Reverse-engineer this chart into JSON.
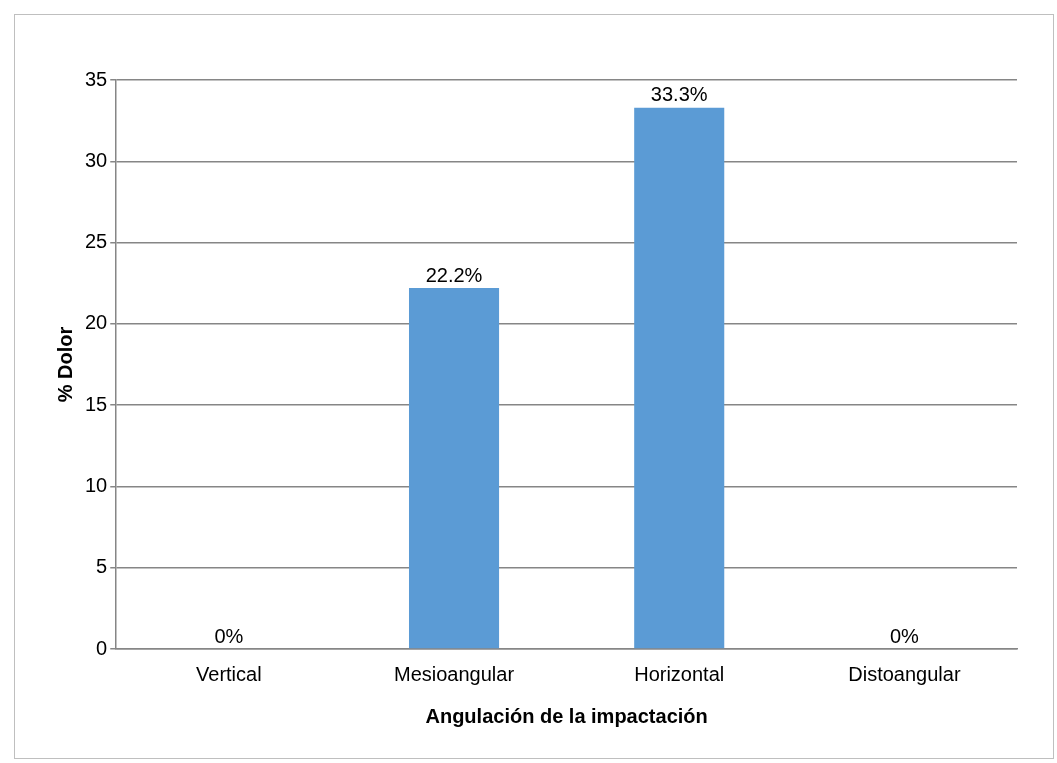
{
  "chart_data": {
    "type": "bar",
    "xlabel": "Angulación de la impactación",
    "ylabel": "% Dolor",
    "categories": [
      "Vertical",
      "Mesioangular",
      "Horizontal",
      "Distoangular"
    ],
    "values": [
      0,
      22.2,
      33.3,
      0
    ],
    "value_labels": [
      "0%",
      "22.2%",
      "33.3%",
      "0%"
    ],
    "color": "#5b9bd5",
    "ylim": [
      0,
      35
    ],
    "yticks": [
      0,
      5,
      10,
      15,
      20,
      25,
      30,
      35
    ],
    "grid": "y",
    "legend": false
  }
}
